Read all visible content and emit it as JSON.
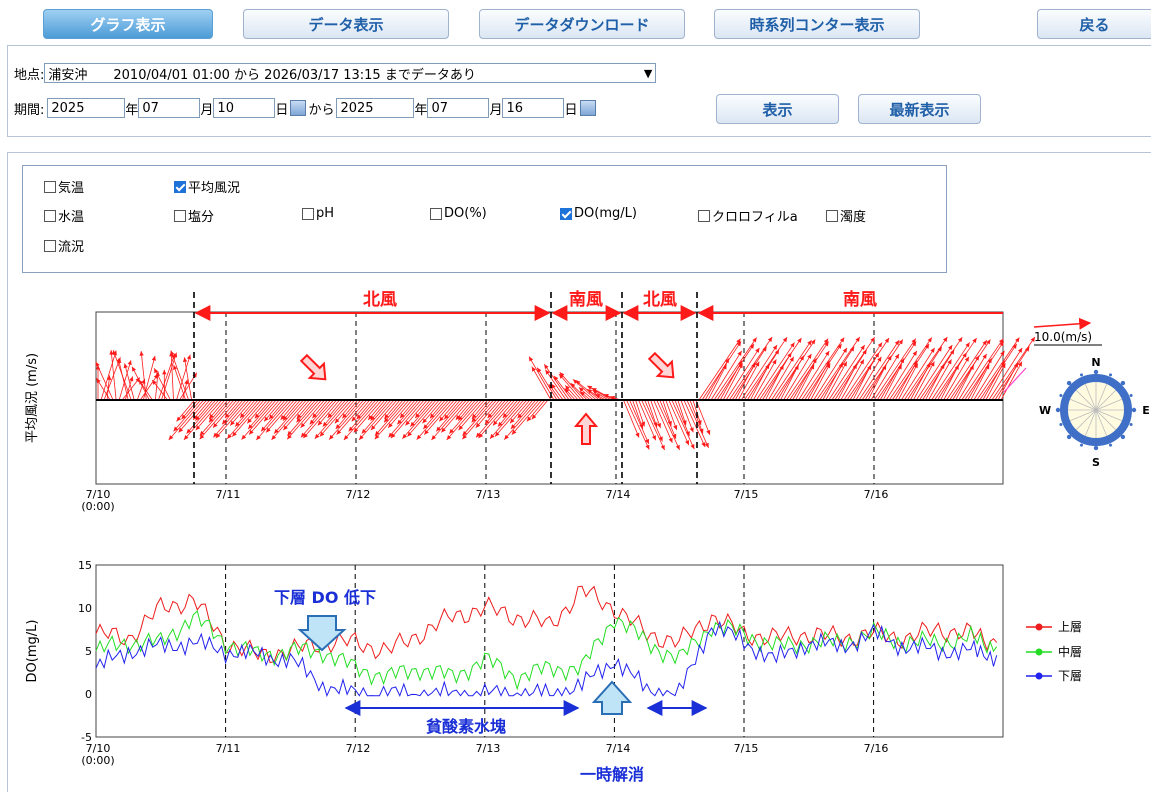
{
  "toolbar": {
    "graph": "グラフ表示",
    "data": "データ表示",
    "download": "データダウンロード",
    "contour": "時系列コンター表示",
    "back": "戻る"
  },
  "site": {
    "label": "地点:",
    "value": "浦安沖　　2010/04/01 01:00 から 2026/03/17 13:15 までデータあり"
  },
  "period": {
    "label": "期間:",
    "y1": "2025",
    "unit_y": "年",
    "m1": "07",
    "unit_m": "月",
    "d1": "10",
    "unit_d": "日",
    "from": "から",
    "y2": "2025",
    "m2": "07",
    "d2": "16",
    "show": "表示",
    "latest": "最新表示"
  },
  "checks": {
    "airtemp": "気温",
    "wind": "平均風況",
    "watertemp": "水温",
    "salinity": "塩分",
    "ph": "pH",
    "do_pct": "DO(%)",
    "do_mg": "DO(mg/L)",
    "chl": "クロロフィルa",
    "turbidity": "濁度",
    "current": "流況"
  },
  "wind_chart": {
    "ylabel": "平均風況 (m/s)",
    "scale_label": "10.0(m/s)",
    "compass": {
      "n": "N",
      "e": "E",
      "s": "S",
      "w": "W"
    },
    "annotations": {
      "north1": "北風",
      "south1": "南風",
      "north2": "北風",
      "south2": "南風"
    },
    "xticks": [
      "7/10",
      "(0:00)",
      "7/11",
      "7/12",
      "7/13",
      "7/14",
      "7/15",
      "7/16"
    ]
  },
  "chart_data": {
    "type": "line",
    "ylabel": "DO(mg/L)",
    "ylim": [
      -5,
      15
    ],
    "yticks": [
      "15",
      "10",
      "5",
      "0",
      "-5"
    ],
    "xticks": [
      "7/10",
      "(0:00)",
      "7/11",
      "7/12",
      "7/13",
      "7/14",
      "7/15",
      "7/16"
    ],
    "x_days": [
      0,
      0.25,
      0.5,
      0.75,
      1,
      1.25,
      1.5,
      1.75,
      2,
      2.25,
      2.5,
      2.75,
      3,
      3.25,
      3.5,
      3.75,
      4,
      4.25,
      4.5,
      4.75,
      5,
      5.25,
      5.5,
      5.75,
      6,
      6.25,
      6.5,
      6.75,
      6.95
    ],
    "series": [
      {
        "name": "上層",
        "color": "#ee1c1c",
        "values": [
          7,
          6.5,
          10,
          11,
          6,
          4.5,
          5,
          6,
          6,
          5,
          7,
          9,
          10,
          9,
          8,
          12,
          10,
          7,
          6,
          9,
          7,
          6.5,
          7,
          6.5,
          7,
          6.5,
          7.5,
          7,
          6
        ]
      },
      {
        "name": "中層",
        "color": "#22dd22",
        "values": [
          5,
          6,
          6,
          9,
          6,
          4.5,
          5,
          5,
          3,
          2,
          3,
          2,
          4,
          2,
          3,
          3,
          9,
          6,
          4,
          8,
          7,
          5.5,
          6,
          6,
          7,
          6,
          6,
          6.5,
          5.5
        ]
      },
      {
        "name": "下層",
        "color": "#2222ee",
        "values": [
          3,
          5,
          5.5,
          6,
          5,
          4.5,
          4,
          1,
          0,
          0,
          0,
          0,
          0,
          0,
          0,
          1,
          4,
          0.5,
          0,
          8,
          6,
          4,
          6,
          5.5,
          7,
          5.5,
          5,
          5,
          4.5
        ]
      }
    ],
    "annotations": {
      "low": "下層 DO 低下",
      "anoxic": "貧酸素水塊",
      "recover": "一時解消"
    }
  }
}
